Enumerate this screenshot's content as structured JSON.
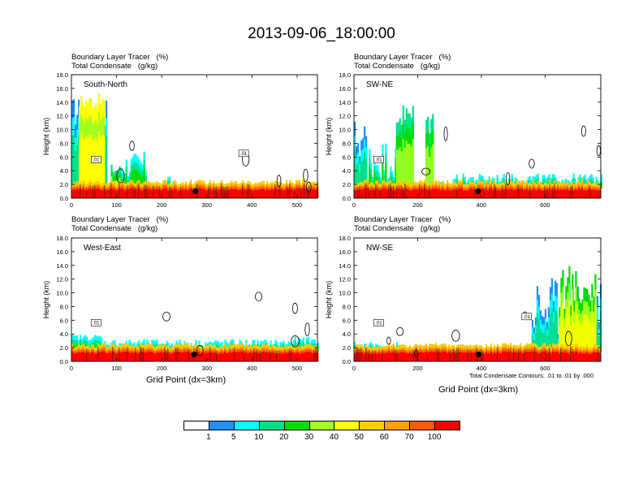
{
  "title": "2013-09-06_18:00:00",
  "panel_header": {
    "line1": "Boundary Layer Tracer   (%)",
    "line2": "Total Condensate   (g/kg)"
  },
  "x_axis_label": "Grid Point (dx=3km)",
  "y_axis_label": "Height (km)",
  "contour_note": "Total Condensate Contours: .01 to .01 by .000",
  "colorbar": {
    "labels": [
      "1",
      "5",
      "10",
      "20",
      "30",
      "40",
      "50",
      "60",
      "70",
      "100"
    ],
    "colors": [
      "#ffffff",
      "#1e90ff",
      "#00ffff",
      "#00e08a",
      "#00dd00",
      "#a0ff20",
      "#ffff00",
      "#ffcc00",
      "#ffa000",
      "#ff5a00",
      "#ff0000"
    ]
  },
  "chart_data": [
    {
      "type": "heatmap",
      "panel_label": "South-North",
      "xlim": [
        0,
        545
      ],
      "ylim": [
        0,
        18
      ],
      "xticks": [
        "0",
        "100",
        "200",
        "300",
        "400",
        "500"
      ],
      "yticks": [
        "0.0",
        "2.0",
        "4.0",
        "6.0",
        "8.0",
        "10.0",
        "12.0",
        "14.0",
        "16.0",
        "18.0"
      ],
      "contour_labels": [
        ".01",
        ".01"
      ],
      "marker_x": 275,
      "marker_y": 1.0
    },
    {
      "type": "heatmap",
      "panel_label": "SW-NE",
      "xlim": [
        0,
        775
      ],
      "ylim": [
        0,
        18
      ],
      "xticks": [
        "0",
        "200",
        "400",
        "600"
      ],
      "yticks": [
        "0.0",
        "2.0",
        "4.0",
        "6.0",
        "8.0",
        "10.0",
        "12.0",
        "14.0",
        "16.0",
        "18.0"
      ],
      "contour_labels": [
        ".01"
      ],
      "marker_x": 390,
      "marker_y": 1.0
    },
    {
      "type": "heatmap",
      "panel_label": "West-East",
      "xlim": [
        0,
        545
      ],
      "ylim": [
        0,
        18
      ],
      "xticks": [
        "0",
        "100",
        "200",
        "300",
        "400",
        "500"
      ],
      "yticks": [
        "0.0",
        "2.0",
        "4.0",
        "6.0",
        "8.0",
        "10.0",
        "12.0",
        "14.0",
        "16.0",
        "18.0"
      ],
      "contour_labels": [
        ".01"
      ],
      "marker_x": 272,
      "marker_y": 1.0
    },
    {
      "type": "heatmap",
      "panel_label": "NW-SE",
      "xlim": [
        0,
        775
      ],
      "ylim": [
        0,
        18
      ],
      "xticks": [
        "0",
        "200",
        "400",
        "600"
      ],
      "yticks": [
        "0.0",
        "2.0",
        "4.0",
        "6.0",
        "8.0",
        "10.0",
        "12.0",
        "14.0",
        "16.0",
        "18.0"
      ],
      "contour_labels": [
        ".01",
        ".01"
      ],
      "marker_x": 392,
      "marker_y": 1.0
    }
  ]
}
